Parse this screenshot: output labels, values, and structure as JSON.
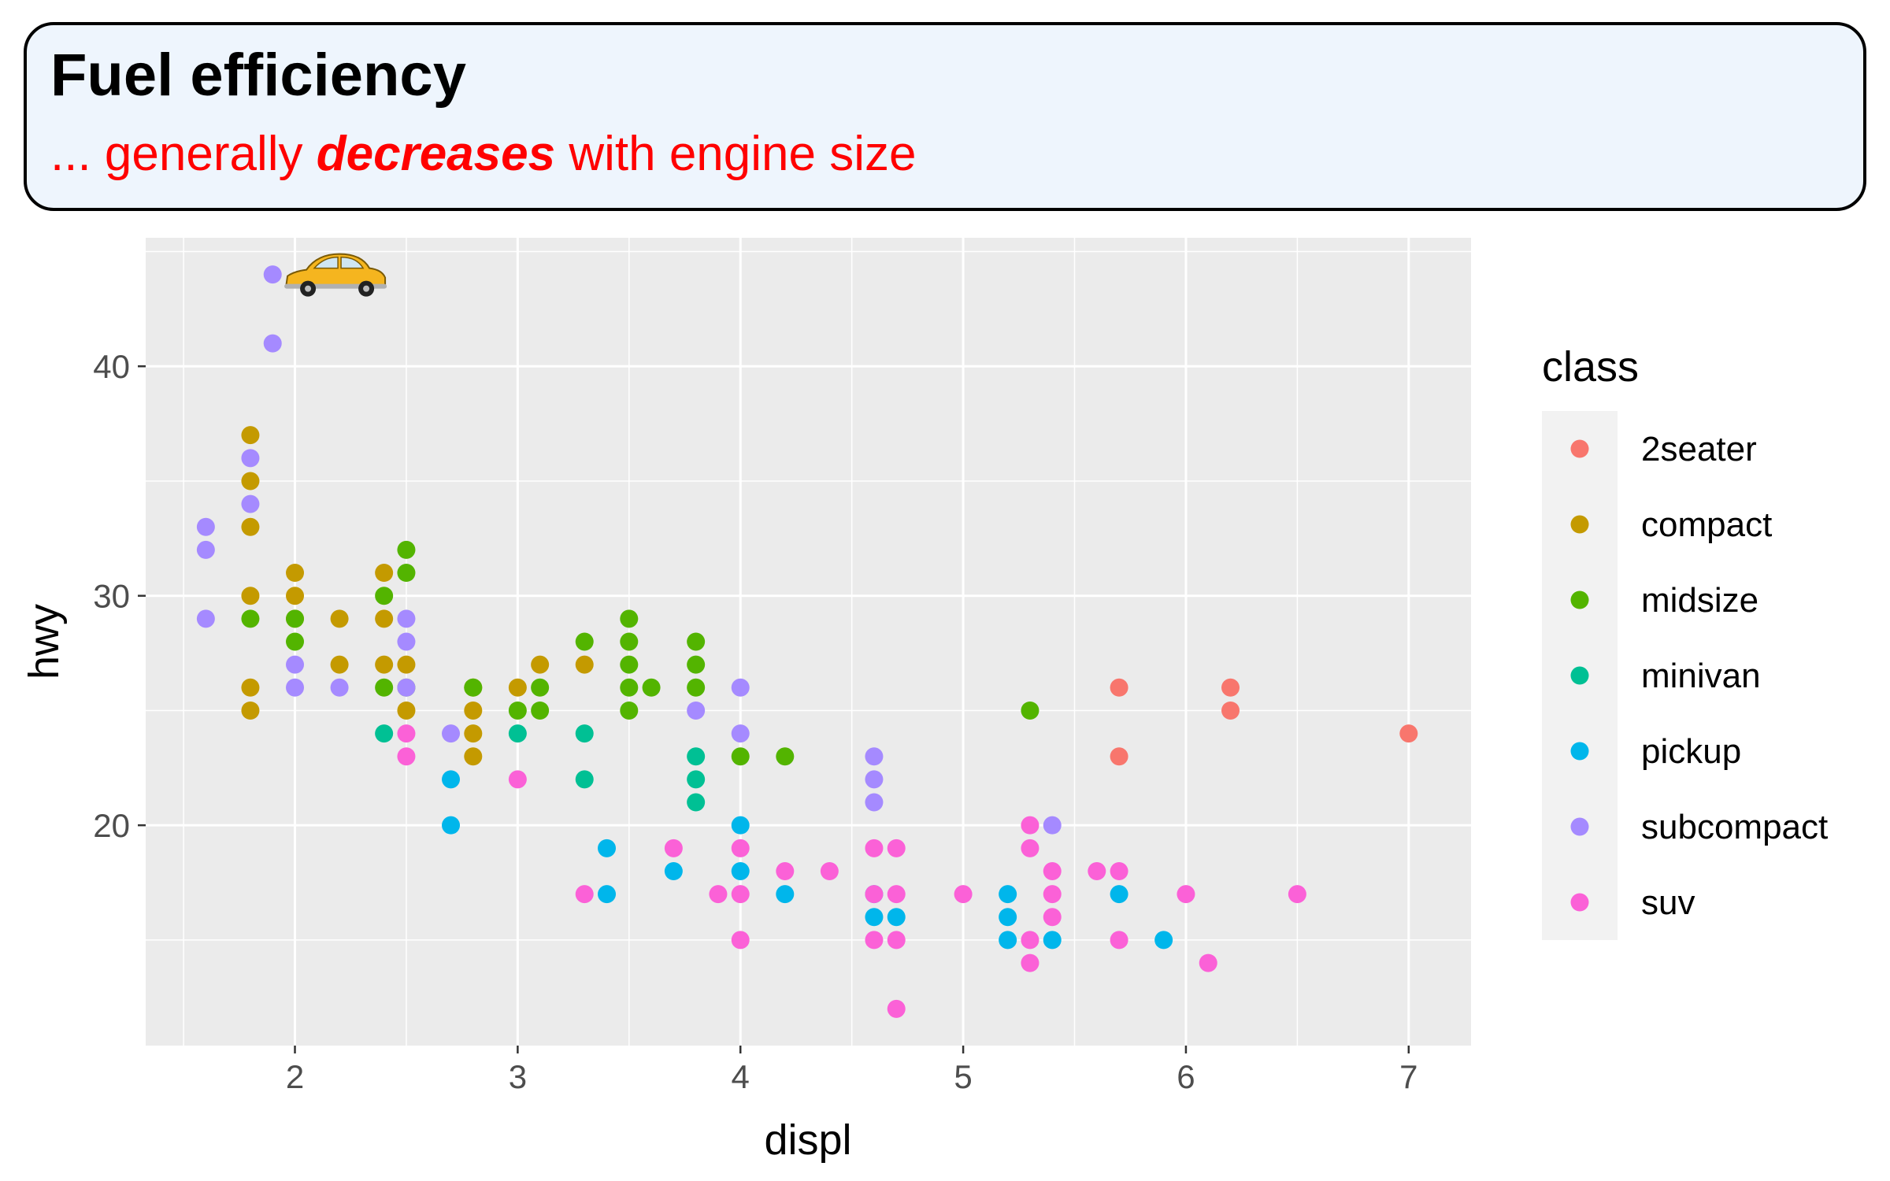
{
  "chart_data": {
    "type": "scatter",
    "title": "Fuel efficiency",
    "subtitle": {
      "before": "... generally ",
      "emphasis": "decreases",
      "after": " with engine size"
    },
    "xlabel": "displ",
    "ylabel": "hwy",
    "xlim": [
      1.33,
      7.28
    ],
    "ylim": [
      10.4,
      45.6
    ],
    "x_ticks": [
      2,
      3,
      4,
      5,
      6,
      7
    ],
    "y_ticks": [
      20,
      30,
      40
    ],
    "grid": true,
    "legend": {
      "title": "class",
      "position": "right"
    },
    "annotation": {
      "type": "car-icon",
      "x": 2.2,
      "y": 44
    },
    "series": [
      {
        "name": "2seater",
        "color": "#F8766D",
        "points": [
          [
            5.7,
            26
          ],
          [
            5.7,
            23
          ],
          [
            6.2,
            26
          ],
          [
            6.2,
            25
          ],
          [
            7.0,
            24
          ]
        ]
      },
      {
        "name": "compact",
        "color": "#C49A00",
        "points": [
          [
            1.8,
            37
          ],
          [
            1.8,
            35
          ],
          [
            1.8,
            33
          ],
          [
            1.8,
            30
          ],
          [
            1.8,
            26
          ],
          [
            1.8,
            25
          ],
          [
            2.0,
            31
          ],
          [
            2.0,
            30
          ],
          [
            2.0,
            29
          ],
          [
            2.2,
            29
          ],
          [
            2.2,
            27
          ],
          [
            2.4,
            31
          ],
          [
            2.4,
            29
          ],
          [
            2.4,
            27
          ],
          [
            2.5,
            27
          ],
          [
            2.5,
            25
          ],
          [
            2.8,
            26
          ],
          [
            2.8,
            25
          ],
          [
            2.8,
            24
          ],
          [
            2.8,
            23
          ],
          [
            3.0,
            26
          ],
          [
            3.1,
            27
          ],
          [
            3.3,
            27
          ]
        ]
      },
      {
        "name": "midsize",
        "color": "#53B400",
        "points": [
          [
            1.8,
            29
          ],
          [
            2.0,
            29
          ],
          [
            2.0,
            28
          ],
          [
            2.4,
            30
          ],
          [
            2.4,
            26
          ],
          [
            2.5,
            32
          ],
          [
            2.5,
            31
          ],
          [
            2.5,
            26
          ],
          [
            2.8,
            26
          ],
          [
            3.0,
            25
          ],
          [
            3.1,
            26
          ],
          [
            3.1,
            25
          ],
          [
            3.3,
            28
          ],
          [
            3.5,
            29
          ],
          [
            3.5,
            28
          ],
          [
            3.5,
            27
          ],
          [
            3.5,
            26
          ],
          [
            3.5,
            25
          ],
          [
            3.6,
            26
          ],
          [
            3.8,
            28
          ],
          [
            3.8,
            27
          ],
          [
            3.8,
            26
          ],
          [
            4.0,
            23
          ],
          [
            4.2,
            23
          ],
          [
            5.3,
            25
          ]
        ]
      },
      {
        "name": "minivan",
        "color": "#00C094",
        "points": [
          [
            2.4,
            24
          ],
          [
            3.0,
            24
          ],
          [
            3.3,
            24
          ],
          [
            3.3,
            22
          ],
          [
            3.8,
            23
          ],
          [
            3.8,
            22
          ],
          [
            3.8,
            21
          ]
        ]
      },
      {
        "name": "pickup",
        "color": "#00B6EB",
        "points": [
          [
            2.7,
            22
          ],
          [
            2.7,
            20
          ],
          [
            3.4,
            19
          ],
          [
            3.4,
            17
          ],
          [
            3.7,
            18
          ],
          [
            4.0,
            20
          ],
          [
            4.0,
            18
          ],
          [
            4.2,
            17
          ],
          [
            4.6,
            17
          ],
          [
            4.6,
            16
          ],
          [
            4.7,
            16
          ],
          [
            5.2,
            17
          ],
          [
            5.2,
            16
          ],
          [
            5.2,
            15
          ],
          [
            5.4,
            15
          ],
          [
            5.7,
            17
          ],
          [
            5.9,
            15
          ]
        ]
      },
      {
        "name": "subcompact",
        "color": "#A58AFF",
        "points": [
          [
            1.6,
            33
          ],
          [
            1.6,
            32
          ],
          [
            1.6,
            29
          ],
          [
            1.8,
            36
          ],
          [
            1.8,
            34
          ],
          [
            1.9,
            44
          ],
          [
            1.9,
            41
          ],
          [
            2.0,
            27
          ],
          [
            2.0,
            26
          ],
          [
            2.2,
            26
          ],
          [
            2.5,
            29
          ],
          [
            2.5,
            28
          ],
          [
            2.5,
            26
          ],
          [
            2.7,
            24
          ],
          [
            3.8,
            25
          ],
          [
            4.0,
            26
          ],
          [
            4.0,
            24
          ],
          [
            4.6,
            23
          ],
          [
            4.6,
            22
          ],
          [
            4.6,
            21
          ],
          [
            5.4,
            20
          ]
        ]
      },
      {
        "name": "suv",
        "color": "#FB61D7",
        "points": [
          [
            2.5,
            24
          ],
          [
            2.5,
            23
          ],
          [
            3.0,
            22
          ],
          [
            3.3,
            17
          ],
          [
            3.7,
            19
          ],
          [
            3.9,
            17
          ],
          [
            4.0,
            19
          ],
          [
            4.0,
            17
          ],
          [
            4.0,
            15
          ],
          [
            4.2,
            18
          ],
          [
            4.4,
            18
          ],
          [
            4.6,
            19
          ],
          [
            4.6,
            17
          ],
          [
            4.6,
            15
          ],
          [
            4.7,
            19
          ],
          [
            4.7,
            17
          ],
          [
            4.7,
            15
          ],
          [
            4.7,
            12
          ],
          [
            5.0,
            17
          ],
          [
            5.3,
            20
          ],
          [
            5.3,
            19
          ],
          [
            5.3,
            15
          ],
          [
            5.3,
            14
          ],
          [
            5.4,
            18
          ],
          [
            5.4,
            17
          ],
          [
            5.4,
            16
          ],
          [
            5.6,
            18
          ],
          [
            5.7,
            18
          ],
          [
            5.7,
            15
          ],
          [
            6.0,
            17
          ],
          [
            6.1,
            14
          ],
          [
            6.5,
            17
          ]
        ]
      }
    ]
  }
}
